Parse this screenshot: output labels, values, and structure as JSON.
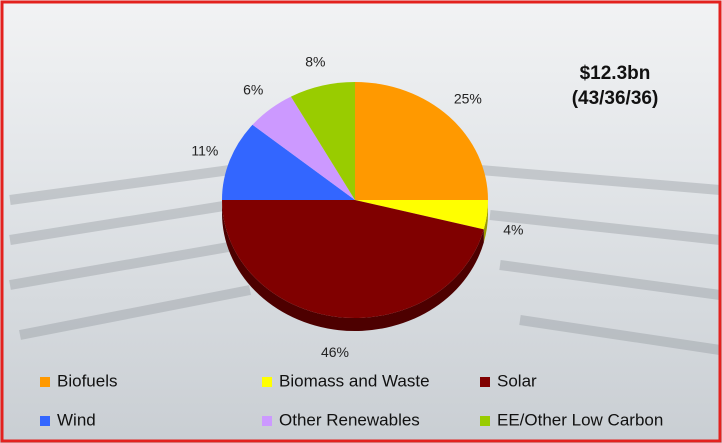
{
  "chart_data": {
    "type": "pie",
    "title": "$12.3bn",
    "subtitle": "(43/36/36)",
    "categories": [
      "Biofuels",
      "Biomass and Waste",
      "Solar",
      "Wind",
      "Other Renewables",
      "EE/Other Low Carbon"
    ],
    "values": [
      25,
      4,
      46,
      11,
      6,
      8
    ],
    "value_labels": [
      "25%",
      "4%",
      "46%",
      "11%",
      "6%",
      "8%"
    ],
    "colors": [
      "#ff9900",
      "#ffff00",
      "#800000",
      "#3366ff",
      "#cc99ff",
      "#99cc00"
    ]
  }
}
